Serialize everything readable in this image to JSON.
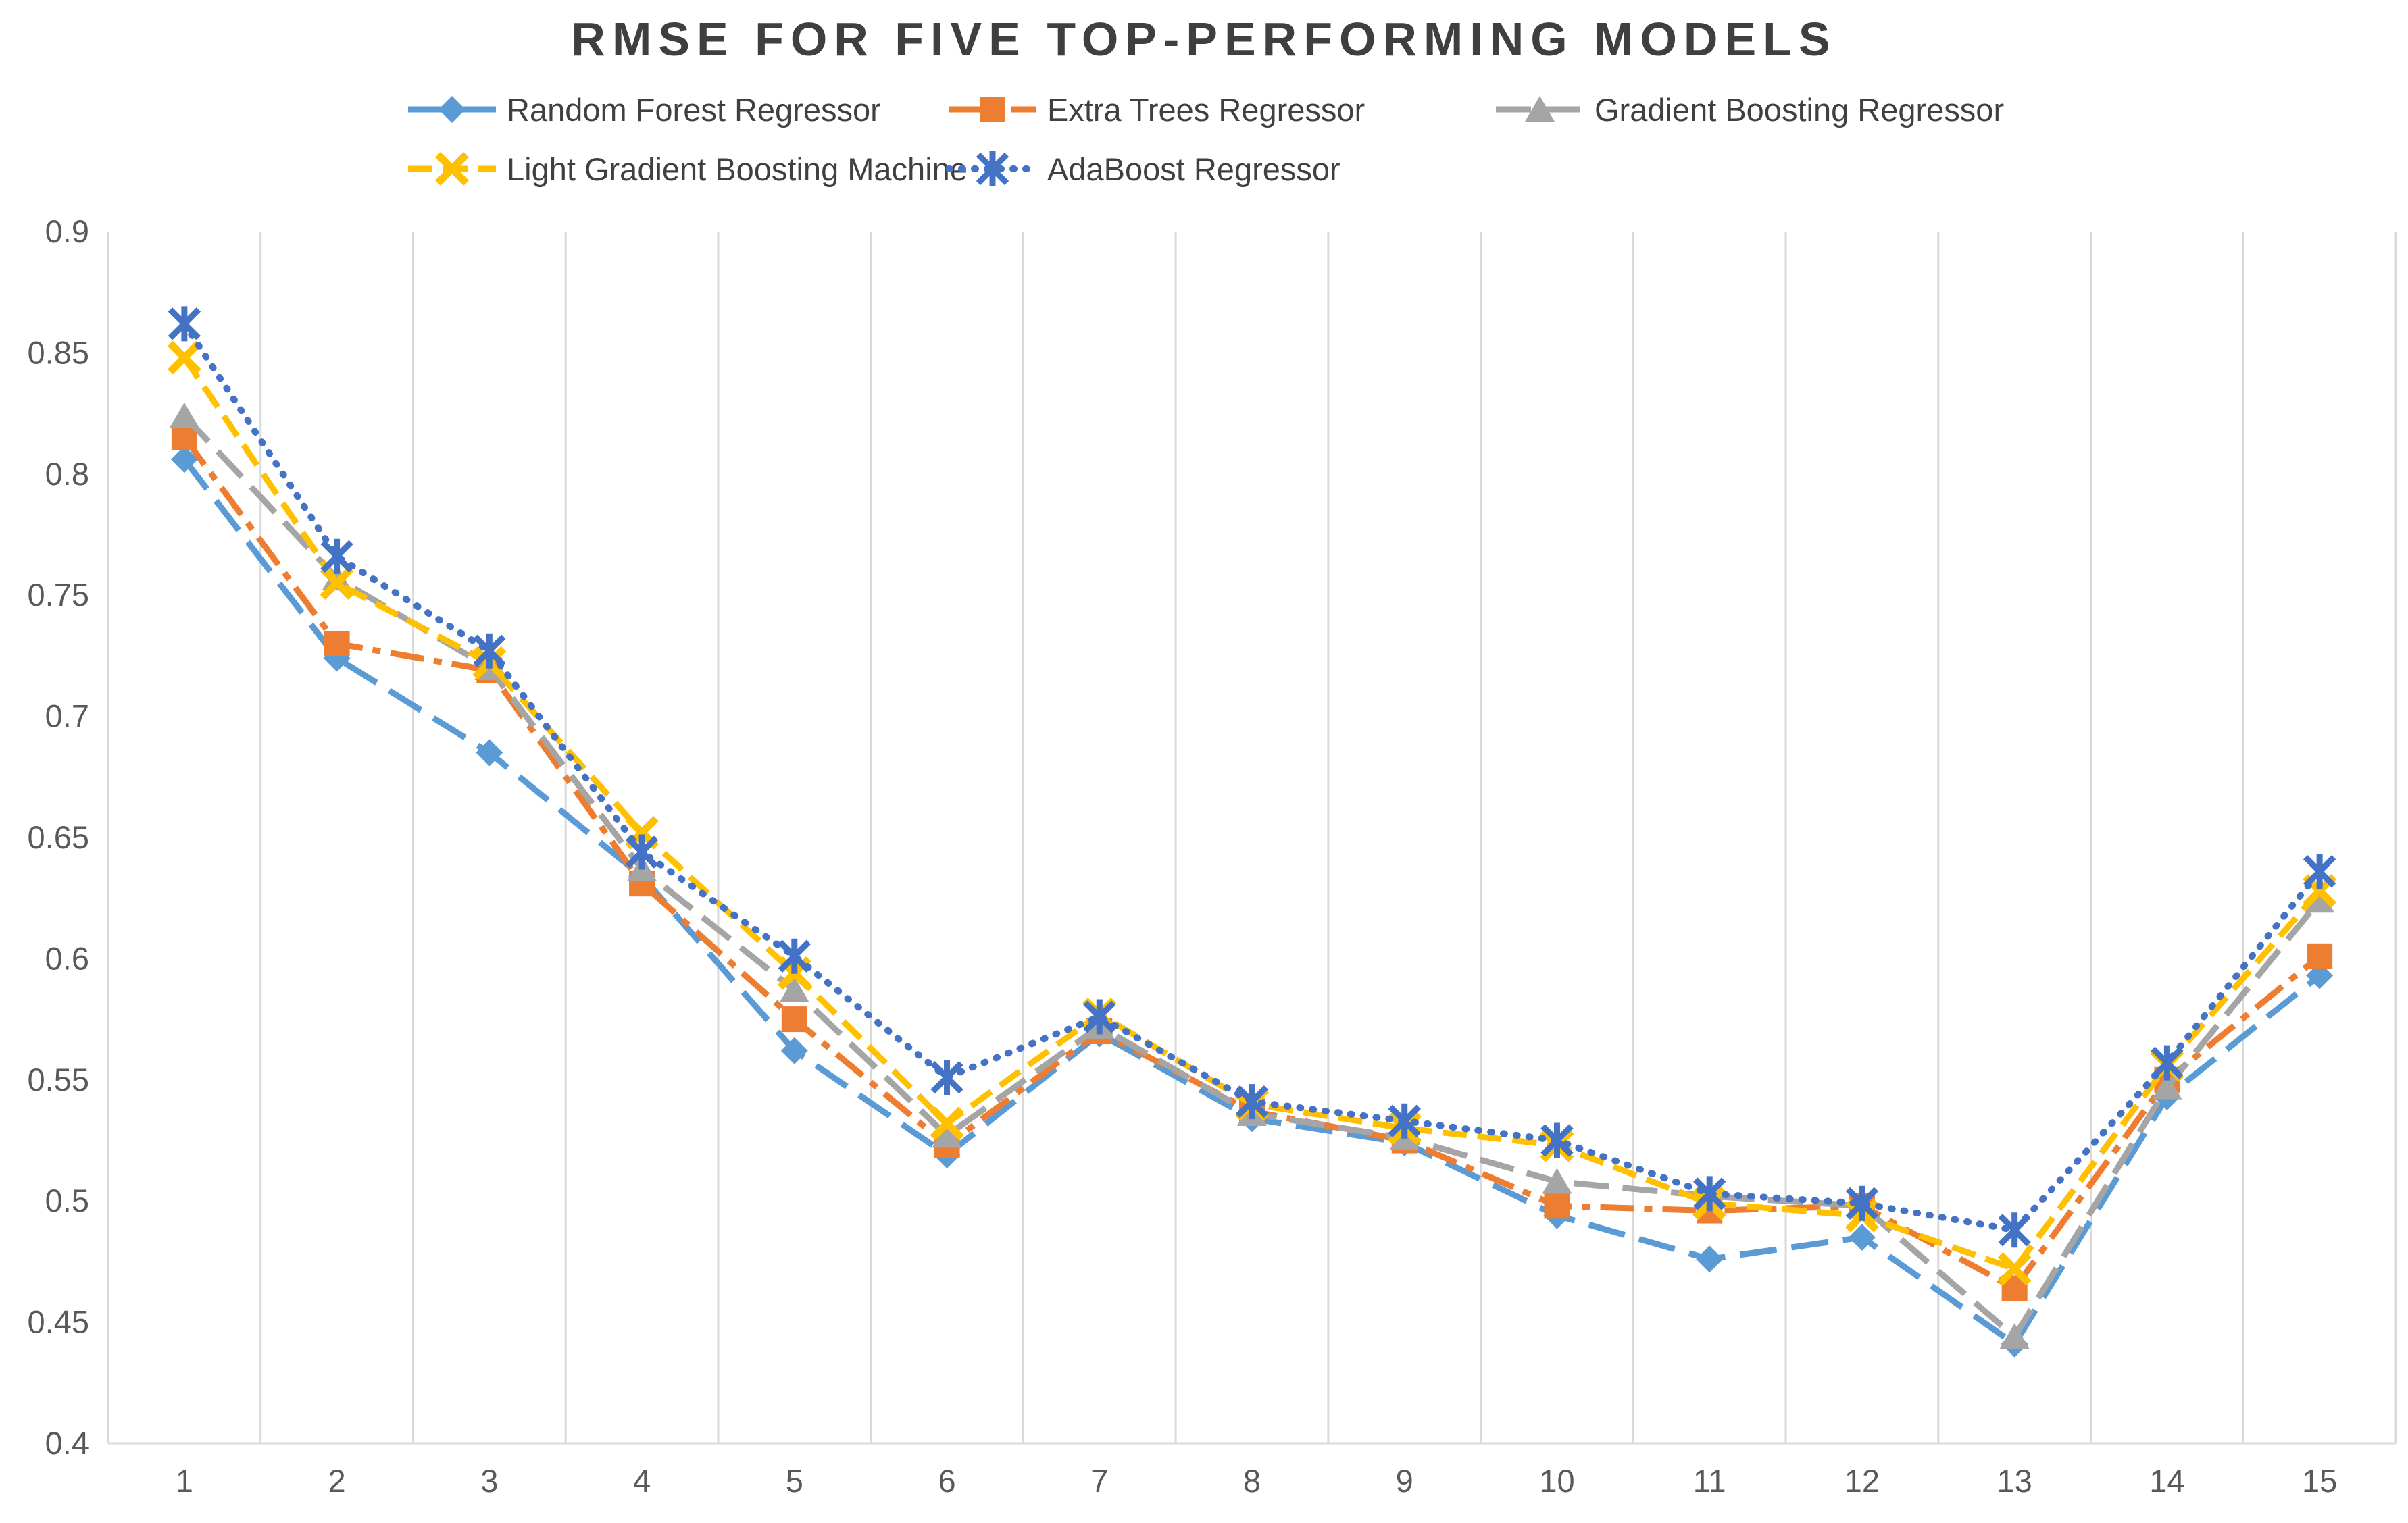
{
  "title": "RMSE FOR FIVE TOP-PERFORMING MODELS",
  "colors": {
    "grid": "#d9d9d9",
    "axis": "#d9d9d9",
    "tick_label": "#595959",
    "title": "#3f3f3f",
    "legend_text": "#404040",
    "background": "#ffffff"
  },
  "chart_data": {
    "type": "line",
    "title": "RMSE FOR FIVE TOP-PERFORMING MODELS",
    "xlabel": "",
    "ylabel": "",
    "categories": [
      "1",
      "2",
      "3",
      "4",
      "5",
      "6",
      "7",
      "8",
      "9",
      "10",
      "11",
      "12",
      "13",
      "14",
      "15"
    ],
    "y_tick_labels": [
      "0.9",
      "0.85",
      "0.8",
      "0.75",
      "0.7",
      "0.65",
      "0.6",
      "0.55",
      "0.5",
      "0.45",
      "0.4"
    ],
    "y_ticks": [
      0.9,
      0.85,
      0.8,
      0.75,
      0.7,
      0.65,
      0.6,
      0.55,
      0.5,
      0.45,
      0.4
    ],
    "ylim": [
      0.4,
      0.9
    ],
    "grid": "vertical-only",
    "legend_position": "top",
    "series": [
      {
        "name": "Random Forest Regressor",
        "color": "#5b9bd5",
        "marker": "diamond",
        "dash": "long-dash",
        "values": [
          0.806,
          0.724,
          0.685,
          0.634,
          0.562,
          0.519,
          0.569,
          0.534,
          0.524,
          0.494,
          0.476,
          0.485,
          0.441,
          0.543,
          0.593
        ]
      },
      {
        "name": "Extra Trees Regressor",
        "color": "#ed7d31",
        "marker": "square",
        "dash": "dash-dot",
        "values": [
          0.815,
          0.73,
          0.719,
          0.631,
          0.575,
          0.523,
          0.57,
          0.537,
          0.525,
          0.498,
          0.496,
          0.498,
          0.464,
          0.55,
          0.601
        ]
      },
      {
        "name": "Gradient Boosting Regressor",
        "color": "#a5a5a5",
        "marker": "triangle",
        "dash": "dash",
        "values": [
          0.824,
          0.757,
          0.72,
          0.637,
          0.587,
          0.527,
          0.572,
          0.536,
          0.526,
          0.508,
          0.502,
          0.498,
          0.444,
          0.547,
          0.624
        ]
      },
      {
        "name": "Light Gradient Boosting Machine",
        "color": "#ffc000",
        "marker": "x",
        "dash": "short-dash",
        "values": [
          0.848,
          0.755,
          0.722,
          0.652,
          0.594,
          0.532,
          0.577,
          0.54,
          0.53,
          0.523,
          0.499,
          0.494,
          0.472,
          0.556,
          0.628
        ]
      },
      {
        "name": "AdaBoost Regressor",
        "color": "#4472c4",
        "marker": "asterisk",
        "dash": "dot",
        "values": [
          0.862,
          0.766,
          0.727,
          0.644,
          0.601,
          0.551,
          0.576,
          0.541,
          0.533,
          0.525,
          0.503,
          0.499,
          0.488,
          0.557,
          0.636
        ]
      }
    ]
  }
}
